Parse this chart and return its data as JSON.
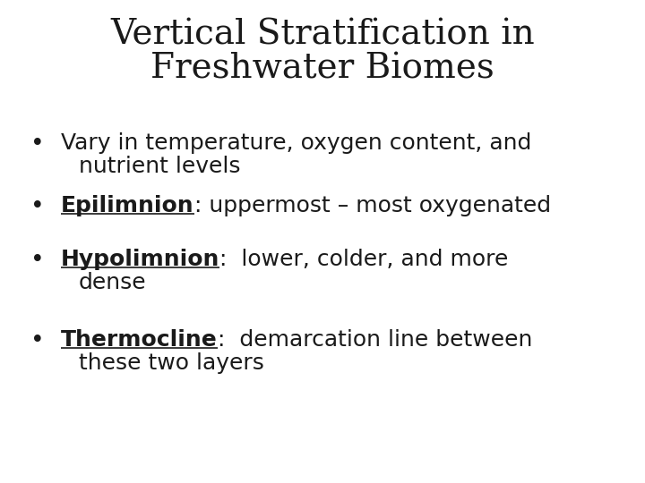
{
  "title_line1": "Vertical Stratification in",
  "title_line2": "Freshwater Biomes",
  "background_color": "#ffffff",
  "text_color": "#1a1a1a",
  "title_fontsize": 28,
  "body_fontsize": 18,
  "bullet_items": [
    {
      "bold_part": "",
      "underline": false,
      "line1": "Vary in temperature, oxygen content, and",
      "line2": "nutrient levels"
    },
    {
      "bold_part": "Epilimnion",
      "underline": true,
      "line1": ": uppermost – most oxygenated",
      "line2": ""
    },
    {
      "bold_part": "Hypolimnion",
      "underline": true,
      "line1": ":  lower, colder, and more",
      "line2": "dense"
    },
    {
      "bold_part": "Thermocline",
      "underline": true,
      "line1": ":  demarcation line between",
      "line2": "these two layers"
    }
  ],
  "font_family": "DejaVu Sans",
  "title_font_family": "DejaVu Serif"
}
